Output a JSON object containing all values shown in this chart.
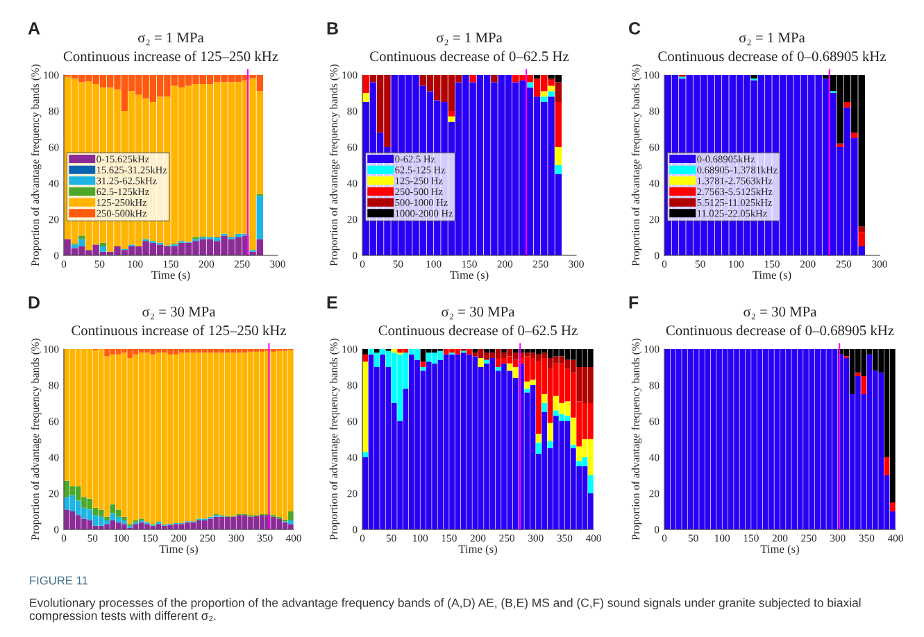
{
  "chart_data": [
    {
      "type": "bar",
      "stacked": true,
      "title": "σ₂ = 1 MPa",
      "subtitle": "Continuous increase of 125–250 kHz",
      "xlabel": "Time (s)",
      "ylabel": "Proportion of advantage frequency bands (%)",
      "legend": "center left",
      "x": [
        5,
        15,
        25,
        35,
        45,
        55,
        65,
        75,
        85,
        95,
        105,
        115,
        125,
        135,
        145,
        155,
        165,
        175,
        185,
        195,
        205,
        215,
        225,
        235,
        245,
        255,
        265,
        275
      ],
      "series": [
        {
          "name": "0-15.625kHz",
          "color": "#8b2c96",
          "values": [
            9,
            4,
            5,
            3,
            6,
            2,
            2,
            5,
            3,
            5,
            5,
            8,
            7,
            6,
            5,
            5,
            7,
            7,
            8,
            9,
            9,
            8,
            11,
            9,
            10,
            11,
            2,
            9
          ]
        },
        {
          "name": "15.625-31.25kHz",
          "color": "#0a64b4",
          "values": [
            0,
            0,
            0,
            0,
            0,
            0,
            0,
            0,
            0,
            0,
            0,
            0,
            0,
            0,
            0,
            0,
            0,
            0,
            0,
            0,
            0,
            0,
            0,
            0,
            0,
            0,
            0,
            0
          ]
        },
        {
          "name": "31.25-62.5kHz",
          "color": "#1eb4e6",
          "values": [
            0,
            2,
            4,
            0,
            0,
            3,
            0,
            0,
            0.5,
            1,
            0,
            1,
            1,
            1,
            0.5,
            1,
            1,
            0.5,
            1,
            1,
            1,
            2,
            1,
            1,
            2,
            1,
            1,
            24
          ]
        },
        {
          "name": "62.5-125kHz",
          "color": "#4ca72a",
          "values": [
            0,
            0.5,
            2,
            0,
            0,
            2,
            0,
            0,
            0,
            0,
            0,
            0,
            0,
            0,
            0,
            0.5,
            0,
            0,
            1,
            0.5,
            0,
            0,
            0,
            0,
            0,
            0,
            0,
            1
          ]
        },
        {
          "name": "125-250kHz",
          "color": "#ffb400",
          "values": [
            90,
            91.5,
            85,
            93.5,
            89,
            86,
            91,
            87,
            76.5,
            85,
            84,
            78,
            77,
            81,
            82.5,
            87.5,
            85,
            86.5,
            85,
            84.5,
            85,
            86,
            84,
            86,
            84,
            85,
            95,
            57
          ]
        },
        {
          "name": "250-500kHz",
          "color": "#ff5a10",
          "values": [
            1,
            2,
            4,
            3.5,
            5,
            7,
            7,
            8,
            20,
            9,
            11,
            13,
            15,
            12,
            12,
            6,
            7,
            6,
            5,
            5,
            5,
            4,
            4,
            4,
            4,
            3,
            2,
            9
          ]
        }
      ],
      "xlim": [
        0,
        300
      ],
      "xticks": [
        0,
        50,
        100,
        150,
        200,
        250,
        300
      ],
      "ylim": [
        0,
        100
      ],
      "yticks": [
        0,
        20,
        40,
        60,
        80,
        100
      ],
      "ref_lines": [
        {
          "axis": "x",
          "value": 258,
          "color": "#ff00ff"
        }
      ],
      "annotations": [
        "A",
        "FIGURE 11",
        "Evolutionary processes of the proportion of the advantage frequency bands of (A,D) AE, (B,E) MS and (C,F) sound signals under granite subjected to biaxial compression tests with different σ₂."
      ]
    },
    {
      "type": "bar",
      "stacked": true,
      "title": "σ₂ = 1 MPa",
      "subtitle": "Continuous decrease of 0–62.5 Hz",
      "xlabel": "Time (s)",
      "ylabel": "Proportion of advantage frequency bands (%)",
      "legend": "center left",
      "x": [
        5,
        15,
        25,
        35,
        45,
        55,
        65,
        75,
        85,
        95,
        105,
        115,
        125,
        135,
        145,
        155,
        165,
        175,
        185,
        195,
        205,
        215,
        225,
        235,
        245,
        255,
        265,
        275
      ],
      "series": [
        {
          "name": "0-62.5 Hz",
          "color": "#2a00f5",
          "values": [
            85,
            96,
            68,
            60,
            100,
            100,
            100,
            100,
            94,
            91,
            86,
            85,
            74,
            96,
            100,
            96,
            100,
            100,
            96,
            100,
            100,
            96,
            97,
            93,
            88,
            85,
            88,
            45
          ]
        },
        {
          "name": "62.5-125 Hz",
          "color": "#00ffff",
          "values": [
            0,
            0,
            0,
            0,
            0,
            0,
            0,
            0,
            0,
            0,
            0,
            0,
            0,
            0,
            0,
            0,
            0,
            0,
            0,
            0,
            0,
            0,
            0,
            3,
            0,
            3,
            3,
            5
          ]
        },
        {
          "name": "125-250 Hz",
          "color": "#ffff00",
          "values": [
            5,
            0,
            0,
            0,
            0,
            0,
            0,
            0,
            0,
            0,
            0,
            0,
            3,
            0,
            0,
            0,
            0,
            0,
            0,
            0,
            0,
            0,
            0,
            0,
            0,
            3,
            3,
            10
          ]
        },
        {
          "name": "250-500 Hz",
          "color": "#ff0000",
          "values": [
            10,
            0,
            0,
            0,
            0,
            0,
            0,
            0,
            0,
            0,
            0,
            0,
            3,
            0,
            0,
            4,
            0,
            0,
            0,
            0,
            0,
            4,
            3,
            4,
            10,
            9,
            3,
            25
          ]
        },
        {
          "name": "500-1000 Hz",
          "color": "#b00000",
          "values": [
            0,
            4,
            32,
            40,
            0,
            0,
            0,
            0,
            6,
            9,
            14,
            15,
            20,
            4,
            0,
            0,
            0,
            0,
            4,
            0,
            0,
            0,
            0,
            0,
            0,
            0,
            1,
            11
          ]
        },
        {
          "name": "1000-2000 Hz",
          "color": "#000000",
          "values": [
            0,
            0,
            0,
            0,
            0,
            0,
            0,
            0,
            0,
            0,
            0,
            0,
            0,
            0,
            0,
            0,
            0,
            0,
            0,
            0,
            0,
            0,
            0,
            0,
            2,
            0,
            2,
            4
          ]
        }
      ],
      "xlim": [
        0,
        300
      ],
      "xticks": [
        0,
        50,
        100,
        150,
        200,
        250,
        300
      ],
      "ylim": [
        0,
        100
      ],
      "yticks": [
        0,
        20,
        40,
        60,
        80,
        100
      ],
      "ref_lines": [
        {
          "axis": "x",
          "value": 230,
          "color": "#ff00ff"
        }
      ],
      "annotations": [
        "B"
      ]
    },
    {
      "type": "bar",
      "stacked": true,
      "title": "σ₂ = 1 MPa",
      "subtitle": "Continuous decrease of 0–0.68905 kHz",
      "xlabel": "Time (s)",
      "ylabel": "Proportion of advantage frequency bands (%)",
      "legend": "center left",
      "x": [
        5,
        15,
        25,
        35,
        45,
        55,
        65,
        75,
        85,
        95,
        105,
        115,
        125,
        135,
        145,
        155,
        165,
        175,
        185,
        195,
        205,
        215,
        225,
        235,
        245,
        255,
        265,
        275
      ],
      "series": [
        {
          "name": "0-0.68905kHz",
          "color": "#2a00f5",
          "values": [
            100,
            100,
            98,
            100,
            100,
            100,
            100,
            100,
            100,
            100,
            100,
            100,
            97,
            100,
            100,
            100,
            100,
            100,
            100,
            100,
            100,
            100,
            98,
            90,
            60,
            82,
            65,
            5
          ]
        },
        {
          "name": "0.68905-1.3781kHz",
          "color": "#00ffff",
          "values": [
            0,
            0,
            1,
            0,
            0,
            0,
            0,
            0,
            0,
            0,
            0,
            0,
            1,
            0,
            0,
            0,
            0,
            0,
            0,
            0,
            0,
            0,
            0,
            1,
            0,
            0,
            0,
            0
          ]
        },
        {
          "name": "1.3781-2.7563kHz",
          "color": "#ffff00",
          "values": [
            0,
            0,
            0,
            0,
            0,
            0,
            0,
            0,
            0,
            0,
            0,
            0,
            0,
            0,
            0,
            0,
            0,
            0,
            0,
            0,
            0,
            0,
            0,
            0,
            0,
            0,
            0,
            0
          ]
        },
        {
          "name": "2.7563-5.5125kHz",
          "color": "#ff0000",
          "values": [
            0,
            0,
            0,
            0,
            0,
            0,
            0,
            0,
            0,
            0,
            0,
            0,
            0,
            0,
            0,
            0,
            0,
            0,
            0,
            0,
            0,
            0,
            0,
            0,
            2,
            3,
            3,
            8
          ]
        },
        {
          "name": "5.5125-11.025kHz",
          "color": "#b00000",
          "values": [
            0,
            0,
            1,
            0,
            0,
            0,
            0,
            0,
            0,
            0,
            0,
            0,
            0,
            0,
            0,
            0,
            0,
            0,
            0,
            0,
            0,
            0,
            0,
            0,
            0,
            0,
            0,
            3
          ]
        },
        {
          "name": "11.025-22.05kHz",
          "color": "#000000",
          "values": [
            0,
            0,
            0,
            0,
            0,
            0,
            0,
            0,
            0,
            0,
            0,
            0,
            2,
            0,
            0,
            0,
            0,
            0,
            0,
            0,
            0,
            0,
            2,
            9,
            38,
            15,
            32,
            84
          ]
        }
      ],
      "xlim": [
        0,
        300
      ],
      "xticks": [
        0,
        50,
        100,
        150,
        200,
        250,
        300
      ],
      "ylim": [
        0,
        100
      ],
      "yticks": [
        0,
        20,
        40,
        60,
        80,
        100
      ],
      "ref_lines": [
        {
          "axis": "x",
          "value": 230,
          "color": "#ff00ff"
        }
      ],
      "annotations": [
        "C"
      ]
    },
    {
      "type": "bar",
      "stacked": true,
      "title": "σ₂ = 30 MPa",
      "subtitle": "Continuous increase of 125–250 kHz",
      "xlabel": "Time (s)",
      "ylabel": "Proportion of advantage frequency bands (%)",
      "x": [
        5,
        15,
        25,
        35,
        45,
        55,
        65,
        75,
        85,
        95,
        105,
        115,
        125,
        135,
        145,
        155,
        165,
        175,
        185,
        195,
        205,
        215,
        225,
        235,
        245,
        255,
        265,
        275,
        285,
        295,
        305,
        315,
        325,
        335,
        345,
        355,
        365,
        375,
        385,
        395
      ],
      "series": [
        {
          "color": "#8b2c96",
          "values": [
            11,
            10,
            8,
            6,
            5,
            2,
            2,
            3,
            5,
            4,
            3,
            1,
            3,
            4,
            3,
            2,
            3,
            2,
            2.5,
            3,
            3,
            4,
            4,
            5,
            5,
            6,
            7,
            7,
            7,
            7,
            8,
            8,
            7,
            7.5,
            8,
            8,
            7,
            6,
            4,
            3
          ]
        },
        {
          "color": "#0a64b4",
          "values": [
            0,
            0,
            0,
            0,
            0,
            0,
            0,
            0,
            0,
            0,
            0,
            0,
            0,
            0,
            0,
            0,
            0,
            0,
            0,
            0,
            0,
            0,
            0,
            0,
            0,
            0,
            0,
            0,
            0,
            0,
            0,
            0,
            0,
            0,
            0,
            0,
            0,
            0,
            0,
            0
          ]
        },
        {
          "color": "#1eb4e6",
          "values": [
            7,
            9,
            8,
            6,
            6,
            6,
            5,
            2,
            4,
            3,
            2,
            1,
            1,
            1,
            1,
            0.5,
            1,
            0.5,
            0.5,
            0.5,
            0.5,
            0.5,
            0.5,
            1,
            1,
            1,
            1,
            0.5,
            0,
            0,
            0,
            0,
            0,
            0,
            0,
            0,
            0,
            0,
            0.5,
            2
          ]
        },
        {
          "color": "#4ca72a",
          "values": [
            9,
            5,
            8,
            6,
            6,
            4,
            4,
            2,
            5,
            4,
            2,
            1,
            1,
            1,
            0,
            0.5,
            0.5,
            0.5,
            0,
            0,
            0,
            0,
            0,
            0,
            0,
            0,
            0.5,
            0.5,
            0.5,
            0.5,
            0.5,
            0.5,
            1,
            0.5,
            0.5,
            0.5,
            1,
            1,
            1,
            5
          ]
        },
        {
          "color": "#ffb400",
          "values": [
            73,
            76,
            76,
            82,
            83,
            87.5,
            89,
            89,
            83,
            86,
            91,
            92,
            92,
            92,
            94,
            94,
            93.5,
            95,
            94,
            93.5,
            94.5,
            93.5,
            93.5,
            92,
            92,
            91,
            89.5,
            90,
            90.5,
            90.5,
            89.5,
            89.5,
            90.5,
            90.5,
            90,
            90.5,
            90.5,
            92,
            93.5,
            89.5
          ]
        },
        {
          "color": "#ff5a10",
          "values": [
            0,
            0,
            0,
            0,
            0,
            0.5,
            0,
            4,
            3,
            3,
            2,
            5,
            3,
            2,
            2,
            3,
            2,
            2,
            3,
            3,
            2,
            2,
            2,
            2,
            2,
            2,
            2,
            2,
            2,
            2,
            2,
            2,
            1.5,
            1.5,
            1.5,
            1,
            1.5,
            1,
            1,
            0.5
          ]
        }
      ],
      "xlim": [
        0,
        400
      ],
      "xticks": [
        0,
        50,
        100,
        150,
        200,
        250,
        300,
        350,
        400
      ],
      "ylim": [
        0,
        100
      ],
      "yticks": [
        0,
        20,
        40,
        60,
        80,
        100
      ],
      "ref_lines": [
        {
          "axis": "x",
          "value": 357,
          "color": "#ff00ff"
        }
      ],
      "annotations": [
        "D"
      ]
    },
    {
      "type": "bar",
      "stacked": true,
      "title": "σ₂ = 30 MPa",
      "subtitle": "Continuous decrease of 0–62.5 Hz",
      "xlabel": "Time (s)",
      "ylabel": "Proportion of advantage frequency bands (%)",
      "x": [
        5,
        15,
        25,
        35,
        45,
        55,
        65,
        75,
        85,
        95,
        105,
        115,
        125,
        135,
        145,
        155,
        165,
        175,
        185,
        195,
        205,
        215,
        225,
        235,
        245,
        255,
        265,
        275,
        285,
        295,
        305,
        315,
        325,
        335,
        345,
        355,
        365,
        375,
        385,
        395
      ],
      "series": [
        {
          "color": "#2a00f5",
          "values": [
            40,
            97,
            90,
            97,
            90,
            70,
            60,
            78,
            97,
            94,
            88,
            93,
            92,
            94,
            97,
            97,
            97,
            98,
            97,
            96,
            90,
            92,
            95,
            88,
            92,
            88,
            84,
            92,
            76,
            80,
            42,
            65,
            45,
            63,
            60,
            60,
            45,
            35,
            35,
            20
          ]
        },
        {
          "color": "#00ffff",
          "values": [
            3,
            3,
            8,
            3,
            9,
            28,
            37,
            20,
            3,
            6,
            2,
            5,
            6,
            5,
            0,
            1,
            0,
            1,
            0,
            0,
            0,
            2,
            0,
            2,
            0,
            0,
            0,
            0,
            2,
            0,
            6,
            5,
            4,
            3,
            4,
            3,
            2,
            3,
            5,
            10
          ]
        },
        {
          "color": "#ffff00",
          "values": [
            50,
            0,
            0,
            0,
            0,
            2,
            1,
            0,
            0,
            0,
            0,
            0,
            0,
            0,
            0,
            0,
            0,
            0,
            0,
            0,
            5,
            0,
            0,
            0,
            0,
            4,
            6,
            0,
            4,
            3,
            5,
            5,
            10,
            8,
            6,
            8,
            15,
            8,
            10,
            20
          ]
        },
        {
          "color": "#ff0000",
          "values": [
            4,
            0,
            0,
            0,
            0,
            0,
            2,
            2,
            0,
            0,
            3,
            0,
            0,
            0,
            3,
            2,
            3,
            0,
            3,
            0,
            0,
            0,
            0,
            5,
            3,
            4,
            4,
            3,
            14,
            12,
            40,
            20,
            30,
            18,
            22,
            18,
            25,
            25,
            20,
            20
          ]
        },
        {
          "color": "#b00000",
          "values": [
            0,
            0,
            0,
            0,
            0,
            0,
            0,
            0,
            0,
            0,
            0,
            0,
            0,
            0,
            0,
            0,
            0,
            1,
            0,
            2,
            5,
            4,
            3,
            5,
            3,
            4,
            4,
            3,
            2,
            3,
            4,
            3,
            6,
            4,
            4,
            5,
            7,
            19,
            20,
            20
          ]
        },
        {
          "color": "#000000",
          "values": [
            3,
            0,
            2,
            0,
            1,
            0,
            0,
            0,
            0,
            0,
            7,
            2,
            2,
            1,
            0,
            0,
            0,
            0,
            0,
            2,
            0,
            2,
            2,
            0,
            2,
            0,
            2,
            2,
            2,
            2,
            3,
            2,
            5,
            4,
            4,
            6,
            6,
            10,
            10,
            10
          ]
        }
      ],
      "xlim": [
        0,
        400
      ],
      "xticks": [
        0,
        50,
        100,
        150,
        200,
        250,
        300,
        350,
        400
      ],
      "ylim": [
        0,
        100
      ],
      "yticks": [
        0,
        20,
        40,
        60,
        80,
        100
      ],
      "ref_lines": [
        {
          "axis": "x",
          "value": 273,
          "color": "#ff00ff"
        }
      ],
      "annotations": [
        "E"
      ]
    },
    {
      "type": "bar",
      "stacked": true,
      "title": "σ₂ = 30 MPa",
      "subtitle": "Continuous decrease of 0–0.68905 kHz",
      "xlabel": "Time (s)",
      "ylabel": "Proportion of advantage frequency bands (%)",
      "x": [
        5,
        15,
        25,
        35,
        45,
        55,
        65,
        75,
        85,
        95,
        105,
        115,
        125,
        135,
        145,
        155,
        165,
        175,
        185,
        195,
        205,
        215,
        225,
        235,
        245,
        255,
        265,
        275,
        285,
        295,
        305,
        315,
        325,
        335,
        345,
        355,
        365,
        375,
        385,
        395
      ],
      "series": [
        {
          "color": "#2a00f5",
          "values": [
            100,
            100,
            100,
            100,
            100,
            100,
            100,
            100,
            100,
            100,
            100,
            100,
            100,
            100,
            100,
            100,
            100,
            100,
            100,
            100,
            100,
            100,
            100,
            100,
            100,
            100,
            100,
            100,
            100,
            100,
            97,
            95,
            75,
            85,
            75,
            97,
            88,
            87,
            30,
            10
          ]
        },
        {
          "color": "#00ffff",
          "values": [
            0,
            0,
            0,
            0,
            0,
            0,
            0,
            0,
            0,
            0,
            0,
            0,
            0,
            0,
            0,
            0,
            0,
            0,
            0,
            0,
            0,
            0,
            0,
            0,
            0,
            0,
            0,
            0,
            0,
            0,
            0,
            0,
            0,
            0,
            0,
            0,
            0,
            0,
            0,
            0
          ]
        },
        {
          "color": "#ffff00",
          "values": [
            0,
            0,
            0,
            0,
            0,
            0,
            0,
            0,
            0,
            0,
            0,
            0,
            0,
            0,
            0,
            0,
            0,
            0,
            0,
            0,
            0,
            0,
            0,
            0,
            0,
            0,
            0,
            0,
            0,
            0,
            0,
            0,
            0,
            0,
            0,
            0,
            0,
            0,
            0,
            0
          ]
        },
        {
          "color": "#ff0000",
          "values": [
            0,
            0,
            0,
            0,
            0,
            0,
            0,
            0,
            0,
            0,
            0,
            0,
            0,
            0,
            0,
            0,
            0,
            0,
            0,
            0,
            0,
            0,
            0,
            0,
            0,
            0,
            0,
            0,
            0,
            0,
            0,
            1,
            0,
            2,
            10,
            0,
            0,
            0,
            10,
            5
          ]
        },
        {
          "color": "#b00000",
          "values": [
            0,
            0,
            0,
            0,
            0,
            0,
            0,
            0,
            0,
            0,
            0,
            0,
            0,
            0,
            0,
            0,
            0,
            0,
            0,
            0,
            0,
            0,
            0,
            0,
            0,
            0,
            0,
            0,
            0,
            0,
            0,
            0,
            0,
            0,
            0,
            0,
            0,
            0,
            0,
            0
          ]
        },
        {
          "color": "#000000",
          "values": [
            0,
            0,
            0,
            0,
            0,
            0,
            0,
            0,
            0,
            0,
            0,
            0,
            0,
            0,
            0,
            0,
            0,
            0,
            0,
            0,
            0,
            0,
            0,
            0,
            0,
            0,
            0,
            0,
            0,
            0,
            3,
            4,
            25,
            13,
            15,
            3,
            12,
            13,
            60,
            85
          ]
        }
      ],
      "xlim": [
        0,
        400
      ],
      "xticks": [
        0,
        50,
        100,
        150,
        200,
        250,
        300,
        350,
        400
      ],
      "ylim": [
        0,
        100
      ],
      "yticks": [
        0,
        20,
        40,
        60,
        80,
        100
      ],
      "ref_lines": [
        {
          "axis": "x",
          "value": 303,
          "color": "#ff00ff"
        }
      ],
      "annotations": [
        "F"
      ]
    }
  ]
}
